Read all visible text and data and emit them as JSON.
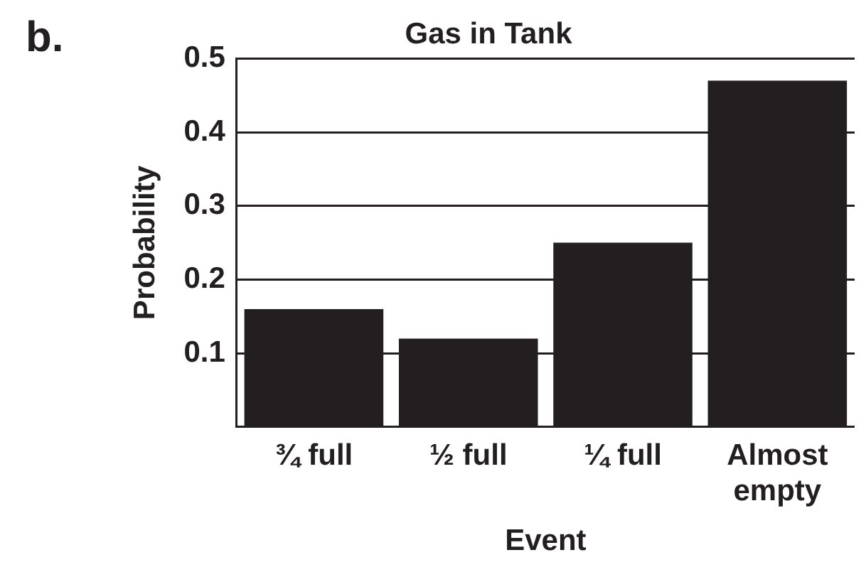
{
  "chart_data": {
    "type": "bar",
    "title": "Gas in Tank",
    "xlabel": "Event",
    "ylabel": "Probability",
    "categories": [
      "¾ full",
      "½ full",
      "¼ full",
      "Almost empty"
    ],
    "values": [
      0.16,
      0.12,
      0.25,
      0.47
    ],
    "color": "#231f20",
    "ylim": [
      0,
      0.5
    ],
    "yticks": [
      0.1,
      0.2,
      0.3,
      0.4,
      0.5
    ],
    "grid": "y",
    "legend": false,
    "annotations": [
      "b."
    ]
  }
}
